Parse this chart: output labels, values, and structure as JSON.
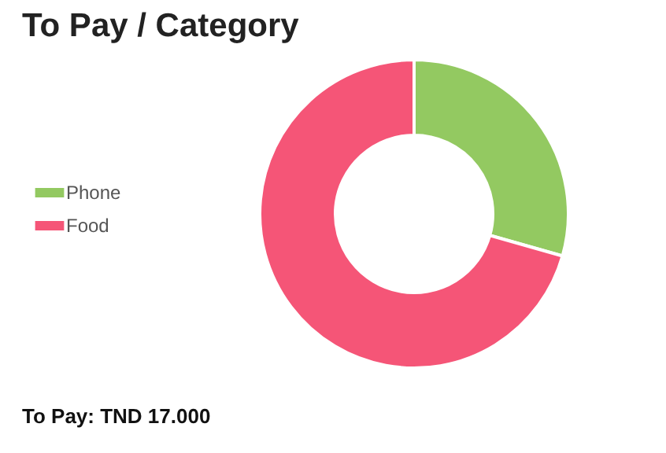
{
  "chart_data": {
    "type": "donut",
    "title": "To Pay / Category",
    "categories": [
      "Phone",
      "Food"
    ],
    "values": [
      29.4,
      70.6
    ],
    "colors": [
      "#93c961",
      "#f55577"
    ],
    "legend": "left",
    "annotations": [
      "To Pay: TND 17.000"
    ]
  }
}
